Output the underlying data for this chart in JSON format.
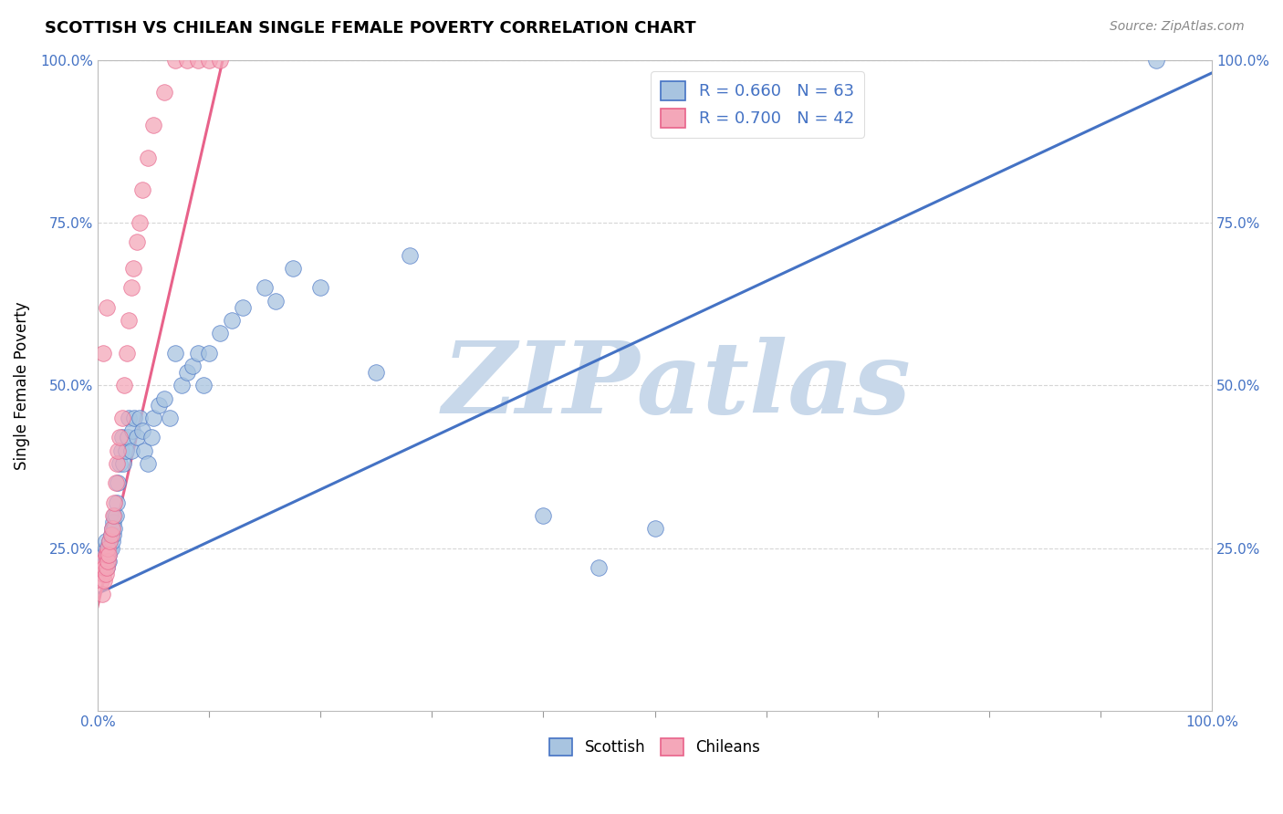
{
  "title": "SCOTTISH VS CHILEAN SINGLE FEMALE POVERTY CORRELATION CHART",
  "source_text": "Source: ZipAtlas.com",
  "ylabel": "Single Female Poverty",
  "xlim": [
    0.0,
    1.0
  ],
  "ylim": [
    0.0,
    1.0
  ],
  "xtick_major": [
    0.0,
    1.0
  ],
  "xtick_minor": [
    0.1,
    0.2,
    0.3,
    0.4,
    0.5,
    0.6,
    0.7,
    0.8,
    0.9
  ],
  "ytick_vals": [
    0.25,
    0.5,
    0.75,
    1.0
  ],
  "ytick_labels": [
    "25.0%",
    "50.0%",
    "75.0%",
    "100.0%"
  ],
  "xtick_major_labels": [
    "0.0%",
    "100.0%"
  ],
  "legend_r_blue": "R = 0.660   N = 63",
  "legend_r_pink": "R = 0.700   N = 42",
  "legend_labels": [
    "Scottish",
    "Chileans"
  ],
  "scottish_color": "#a8c4e0",
  "chilean_color": "#f4a7b9",
  "scottish_line_color": "#4472c4",
  "chilean_line_color": "#e8628a",
  "watermark_text": "ZIPatlas",
  "watermark_color": "#c8d8ea",
  "background_color": "#ffffff",
  "grid_color": "#cccccc",
  "scottish_x": [
    0.005,
    0.006,
    0.007,
    0.007,
    0.008,
    0.008,
    0.009,
    0.009,
    0.01,
    0.01,
    0.011,
    0.011,
    0.012,
    0.012,
    0.013,
    0.013,
    0.014,
    0.014,
    0.015,
    0.015,
    0.016,
    0.017,
    0.018,
    0.02,
    0.021,
    0.022,
    0.023,
    0.025,
    0.027,
    0.028,
    0.03,
    0.031,
    0.033,
    0.035,
    0.038,
    0.04,
    0.042,
    0.045,
    0.048,
    0.05,
    0.055,
    0.06,
    0.065,
    0.07,
    0.075,
    0.08,
    0.085,
    0.09,
    0.095,
    0.1,
    0.11,
    0.12,
    0.13,
    0.15,
    0.16,
    0.175,
    0.2,
    0.25,
    0.28,
    0.4,
    0.45,
    0.5,
    0.95
  ],
  "scottish_y": [
    0.23,
    0.24,
    0.25,
    0.26,
    0.23,
    0.22,
    0.24,
    0.25,
    0.23,
    0.24,
    0.25,
    0.26,
    0.25,
    0.27,
    0.26,
    0.28,
    0.27,
    0.29,
    0.28,
    0.3,
    0.3,
    0.32,
    0.35,
    0.38,
    0.4,
    0.42,
    0.38,
    0.4,
    0.42,
    0.45,
    0.4,
    0.43,
    0.45,
    0.42,
    0.45,
    0.43,
    0.4,
    0.38,
    0.42,
    0.45,
    0.47,
    0.48,
    0.45,
    0.55,
    0.5,
    0.52,
    0.53,
    0.55,
    0.5,
    0.55,
    0.58,
    0.6,
    0.62,
    0.65,
    0.63,
    0.68,
    0.65,
    0.52,
    0.7,
    0.3,
    0.22,
    0.28,
    1.0
  ],
  "chilean_x": [
    0.003,
    0.004,
    0.004,
    0.005,
    0.005,
    0.006,
    0.006,
    0.007,
    0.007,
    0.008,
    0.008,
    0.009,
    0.009,
    0.01,
    0.011,
    0.012,
    0.013,
    0.014,
    0.015,
    0.016,
    0.017,
    0.018,
    0.02,
    0.022,
    0.024,
    0.026,
    0.028,
    0.03,
    0.032,
    0.035,
    0.038,
    0.04,
    0.045,
    0.05,
    0.06,
    0.07,
    0.08,
    0.09,
    0.1,
    0.11,
    0.005,
    0.008
  ],
  "chilean_y": [
    0.2,
    0.22,
    0.18,
    0.21,
    0.23,
    0.2,
    0.22,
    0.21,
    0.24,
    0.22,
    0.24,
    0.23,
    0.25,
    0.24,
    0.26,
    0.27,
    0.28,
    0.3,
    0.32,
    0.35,
    0.38,
    0.4,
    0.42,
    0.45,
    0.5,
    0.55,
    0.6,
    0.65,
    0.68,
    0.72,
    0.75,
    0.8,
    0.85,
    0.9,
    0.95,
    1.0,
    1.0,
    1.0,
    1.0,
    1.0,
    0.55,
    0.62
  ],
  "scottish_trend_x": [
    0.0,
    1.0
  ],
  "scottish_trend_y": [
    0.18,
    0.98
  ],
  "chilean_trend_x": [
    0.0,
    0.115
  ],
  "chilean_trend_y": [
    0.16,
    1.02
  ]
}
